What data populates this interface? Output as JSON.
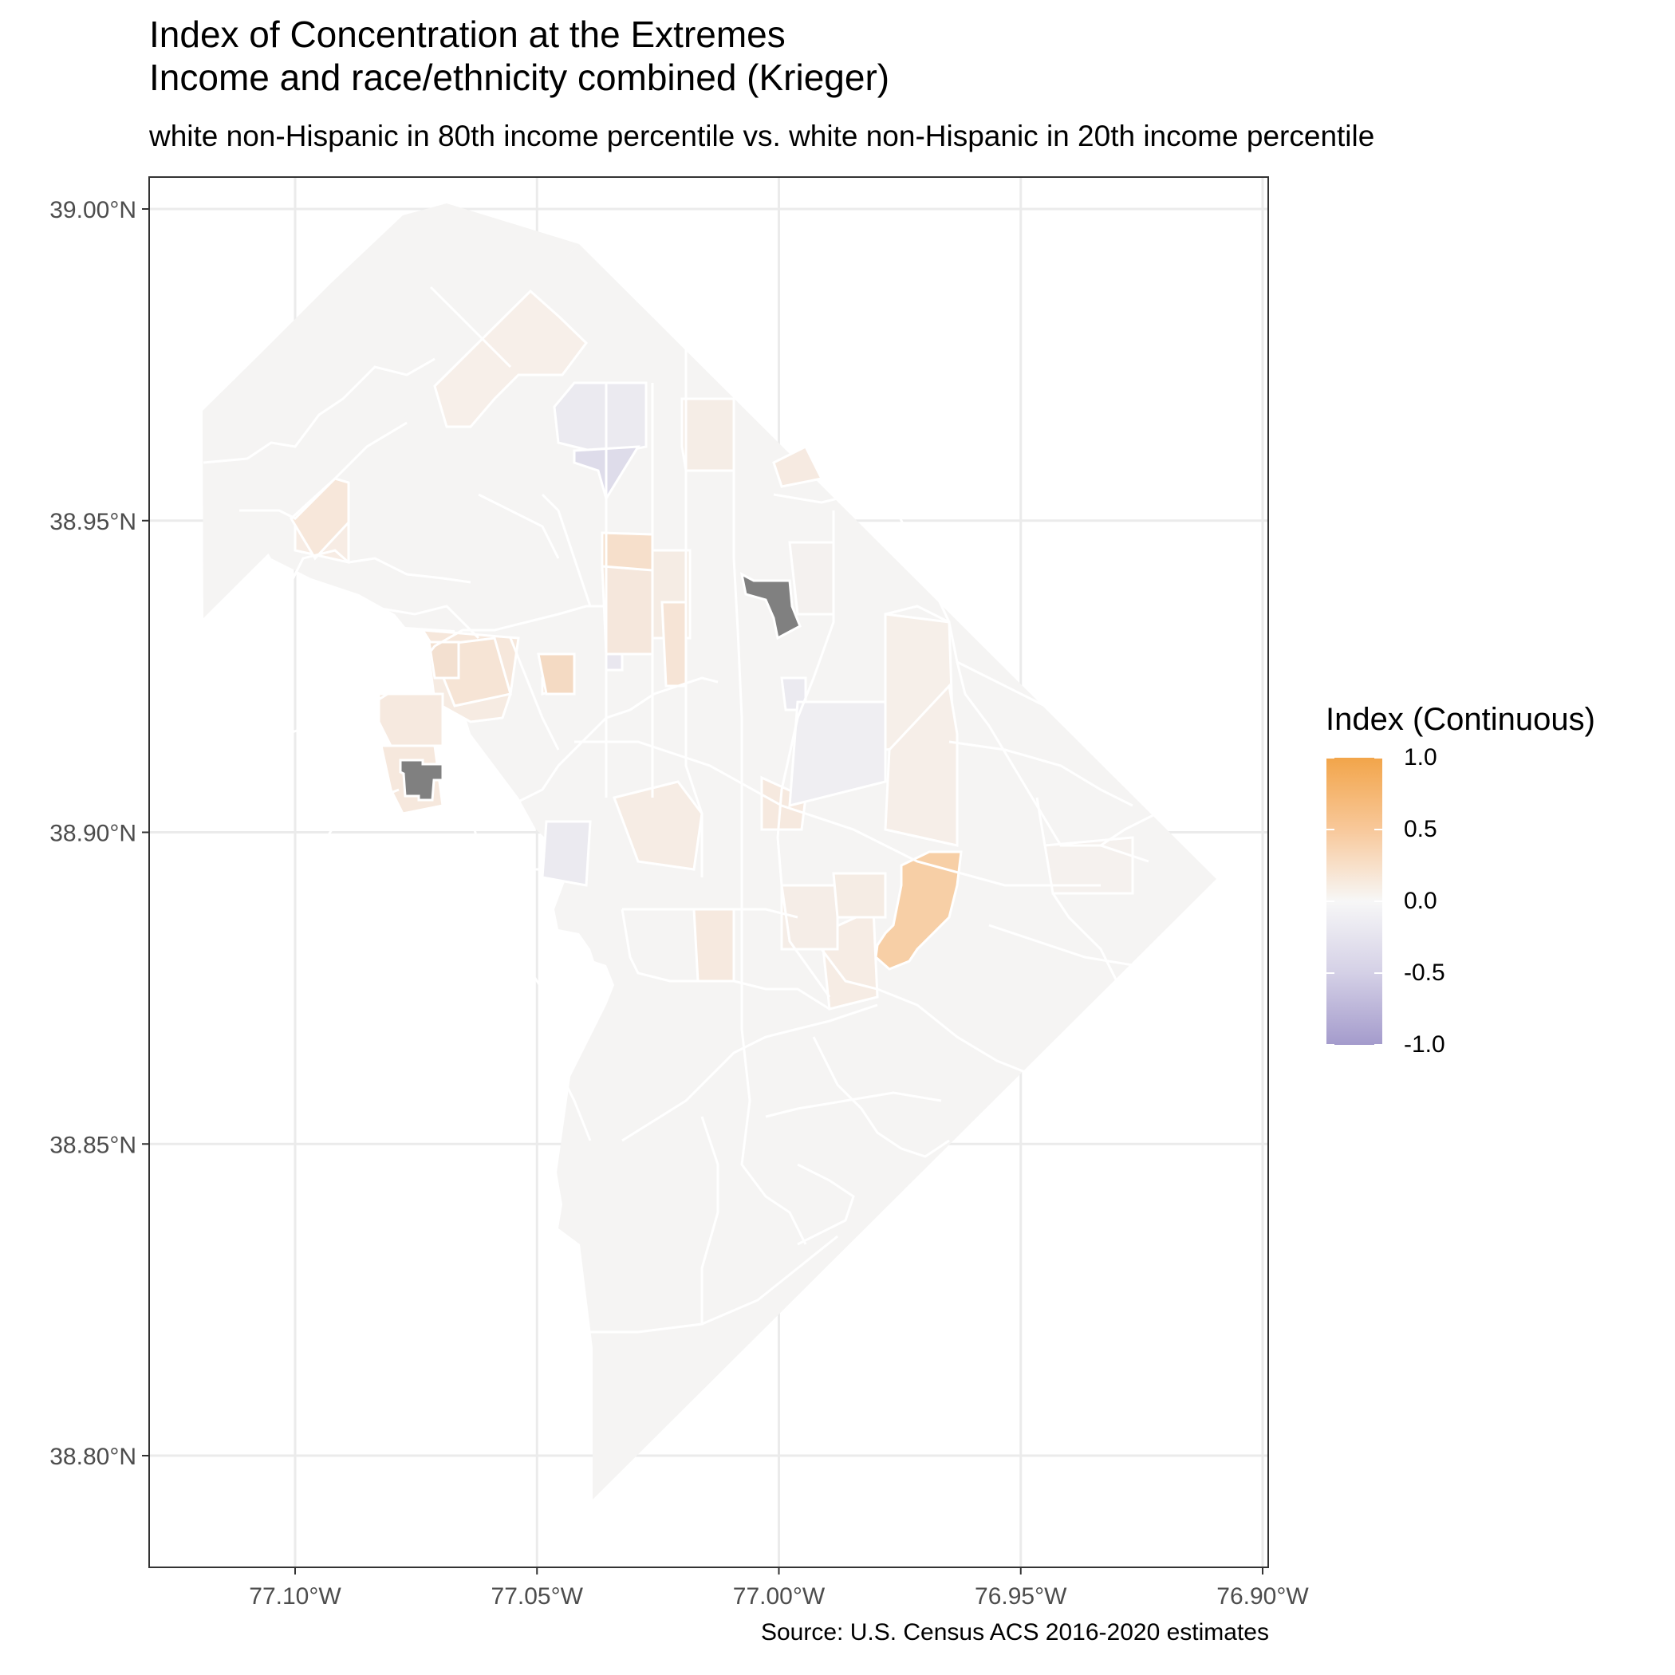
{
  "title_lines": [
    "Index of Concentration at the Extremes",
    "Income and race/ethnicity combined (Krieger)"
  ],
  "subtitle": "white non-Hispanic in 80th income percentile vs. white non-Hispanic in 20th income percentile",
  "caption": "Source: U.S. Census ACS 2016-2020 estimates",
  "map": {
    "x_ticks": [
      "77.10°W",
      "77.05°W",
      "77.00°W",
      "76.95°W",
      "76.90°W"
    ],
    "y_ticks": [
      "39.00°N",
      "38.95°N",
      "38.90°N",
      "38.85°N",
      "38.80°N"
    ],
    "x_tick_values": [
      -77.1,
      -77.05,
      -77.0,
      -76.95,
      -76.9
    ],
    "y_tick_values": [
      39.0,
      38.95,
      38.9,
      38.85,
      38.8
    ],
    "lon_range": [
      -77.13,
      -76.9
    ],
    "lat_range": [
      38.78,
      39.005
    ],
    "grid": true,
    "panel_background": "#ffffff",
    "grid_color": "#ebebeb",
    "boundary_color": "#ffffff",
    "missing_color": "#808080",
    "base_fill": "#f5f4f3"
  },
  "legend": {
    "title": "Index (Continuous)",
    "labels": [
      "1.0",
      "0.5",
      "0.0",
      "-0.5",
      "-1.0"
    ],
    "values": [
      1.0,
      0.5,
      0.0,
      -0.5,
      -1.0
    ],
    "colors": {
      "high": "#f2a54a",
      "mid": "#f7f7f7",
      "low": "#a49bcc"
    },
    "position": "right"
  }
}
